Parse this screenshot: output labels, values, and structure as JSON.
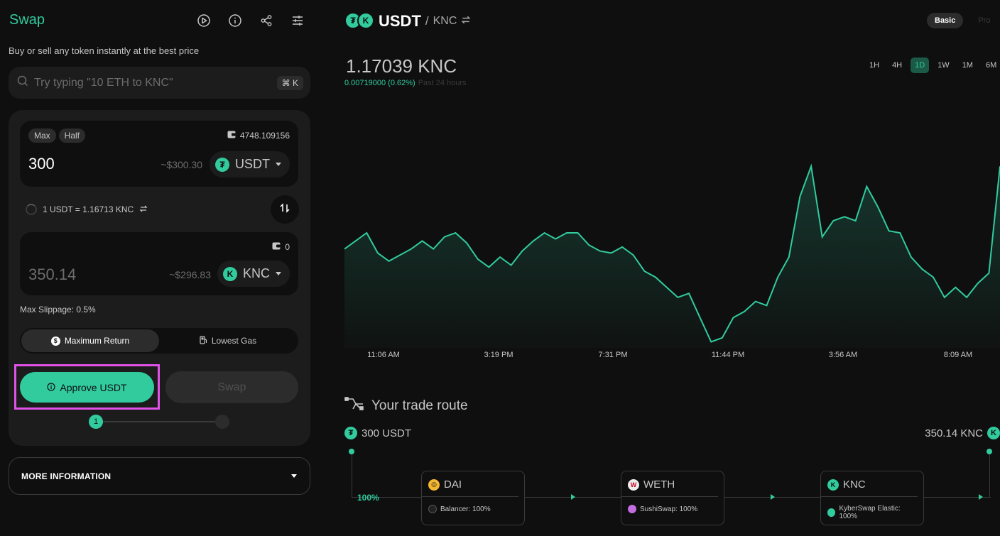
{
  "swap": {
    "title": "Swap",
    "subtitle": "Buy or sell any token instantly at the best price",
    "header_icons": [
      "play-icon",
      "info-icon",
      "share-icon",
      "settings-sliders-icon"
    ],
    "search": {
      "placeholder": "Try typing \"10 ETH to KNC\"",
      "shortcut": "⌘ K"
    },
    "input": {
      "max_label": "Max",
      "half_label": "Half",
      "balance": "4748.109156",
      "amount": "300",
      "usd": "~$300.30",
      "token": "USDT"
    },
    "rate": "1 USDT = 1.16713 KNC",
    "output": {
      "balance": "0",
      "amount": "350.14",
      "usd": "~$296.83",
      "token": "KNC"
    },
    "slippage": "Max Slippage: 0.5%",
    "modes": {
      "max_return": "Maximum Return",
      "lowest_gas": "Lowest Gas"
    },
    "approve_label": "Approve USDT",
    "swap_label": "Swap",
    "step1": "1",
    "more_info": "MORE INFORMATION"
  },
  "pair": {
    "base": "USDT",
    "sep": "/",
    "quote": "KNC",
    "mode_basic": "Basic",
    "mode_pro": "Pro"
  },
  "price": {
    "value": "1.17039 KNC",
    "change": "0.00719000 (0.62%)",
    "period": "Past 24 hours",
    "timeframes": [
      "1H",
      "4H",
      "1D",
      "1W",
      "1M",
      "6M"
    ],
    "active_timeframe": "1D"
  },
  "colors": {
    "accent": "#31cb9e",
    "highlight": "#e052e8",
    "bg": "#0f0f0f",
    "panel": "#1c1c1c"
  },
  "chart_data": {
    "type": "area",
    "x_ticks": [
      "11:06 AM",
      "3:19 PM",
      "7:31 PM",
      "11:44 PM",
      "3:56 AM",
      "8:09 AM"
    ],
    "values": [
      1.1704,
      1.1708,
      1.1712,
      1.1702,
      1.1698,
      1.1701,
      1.1704,
      1.1708,
      1.1704,
      1.171,
      1.1712,
      1.1707,
      1.1699,
      1.1695,
      1.17,
      1.1696,
      1.1703,
      1.1708,
      1.1712,
      1.1709,
      1.1712,
      1.1712,
      1.1706,
      1.1703,
      1.1702,
      1.1705,
      1.1701,
      1.1693,
      1.169,
      1.1685,
      1.168,
      1.1682,
      1.167,
      1.1658,
      1.166,
      1.167,
      1.1673,
      1.1678,
      1.1676,
      1.169,
      1.17,
      1.173,
      1.1745,
      1.171,
      1.1718,
      1.172,
      1.1718,
      1.1735,
      1.1725,
      1.1713,
      1.1712,
      1.17,
      1.1694,
      1.169,
      1.168,
      1.1685,
      1.168,
      1.1687,
      1.1692,
      1.1745
    ],
    "ylim": [
      1.1655,
      1.175
    ],
    "line_color": "#31cb9e",
    "grid": false
  },
  "route": {
    "title": "Your trade route",
    "from": "300 USDT",
    "to": "350.14 KNC",
    "percent": "100%",
    "hops": [
      {
        "token": "DAI",
        "exchange": "Balancer: 100%"
      },
      {
        "token": "WETH",
        "exchange": "SushiSwap: 100%"
      },
      {
        "token": "KNC",
        "exchange": "KyberSwap Elastic: 100%"
      }
    ]
  }
}
